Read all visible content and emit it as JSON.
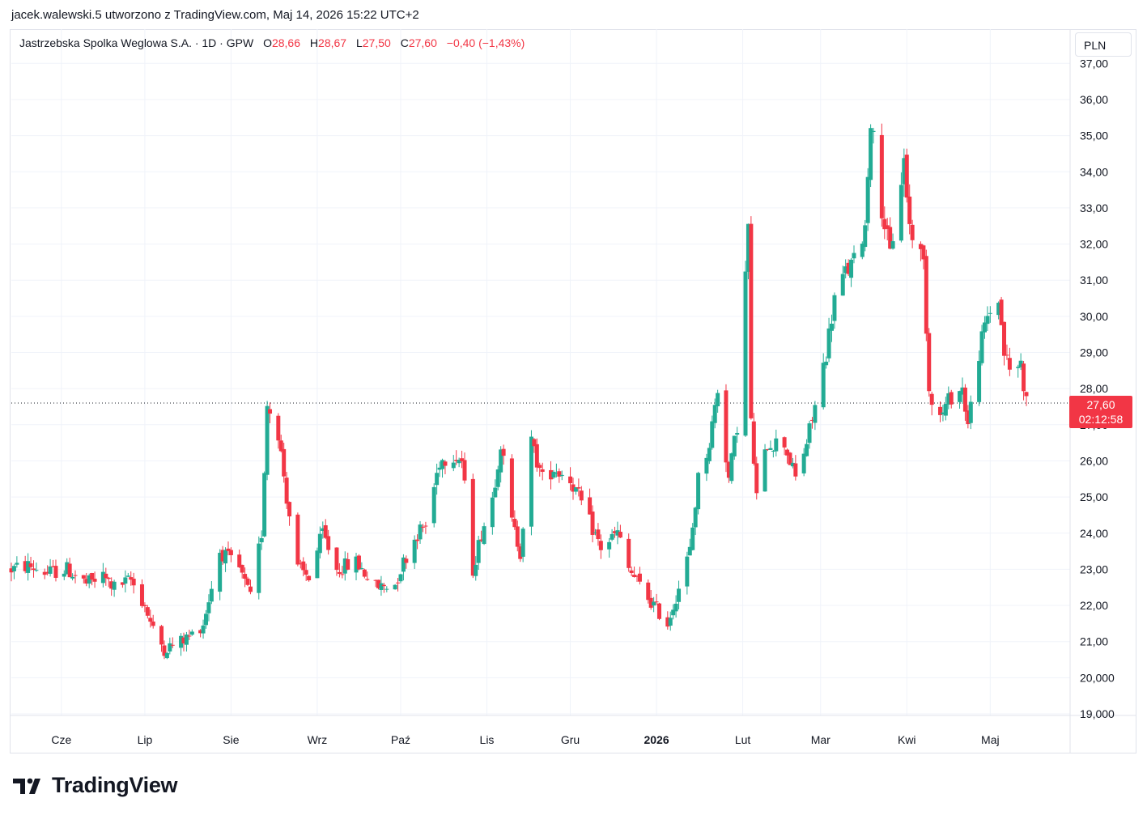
{
  "header": {
    "attribution": "jacek.walewski.5 utworzono z TradingView.com, Maj 14, 2026 15:22 UTC+2"
  },
  "legend": {
    "symbol": "Jastrzebska Spolka Weglowa S.A. · 1D · GPW",
    "open_label": "O",
    "open": "28,66",
    "high_label": "H",
    "high": "28,67",
    "low_label": "L",
    "low": "27,50",
    "close_label": "C",
    "close": "27,60",
    "change": "−0,40 (−1,43%)"
  },
  "currency_button": "PLN",
  "last_price": {
    "price": "27,60",
    "countdown": "02:12:58"
  },
  "brand": {
    "name": "TradingView"
  },
  "colors": {
    "up": "#22ab94",
    "down": "#f23645",
    "grid": "#f0f3fa",
    "text": "#131722"
  },
  "chart_data": {
    "type": "candlestick",
    "title": "Jastrzebska Spolka Weglowa S.A. · 1D · GPW",
    "ylim": [
      19,
      37
    ],
    "y_ticks": [
      "19,000",
      "20,000",
      "21,00",
      "22,00",
      "23,00",
      "24,00",
      "25,00",
      "26,00",
      "27,00",
      "28,00",
      "29,00",
      "30,00",
      "31,00",
      "32,00",
      "33,00",
      "34,00",
      "35,00",
      "36,00",
      "37,00"
    ],
    "x_ticks": [
      {
        "label": "Cze",
        "date": "2025-06-01"
      },
      {
        "label": "Lip",
        "date": "2025-07-01"
      },
      {
        "label": "Sie",
        "date": "2025-08-01"
      },
      {
        "label": "Wrz",
        "date": "2025-09-01"
      },
      {
        "label": "Paź",
        "date": "2025-10-01"
      },
      {
        "label": "Lis",
        "date": "2025-11-01"
      },
      {
        "label": "Gru",
        "date": "2025-12-01"
      },
      {
        "label": "2026",
        "date": "2026-01-01",
        "bold": true
      },
      {
        "label": "Lut",
        "date": "2026-02-01"
      },
      {
        "label": "Mar",
        "date": "2026-03-01"
      },
      {
        "label": "Kwi",
        "date": "2026-04-01"
      },
      {
        "label": "Maj",
        "date": "2026-05-01"
      }
    ],
    "last_close": 27.6,
    "close_path": [
      [
        "2025-05-14",
        23.0
      ],
      [
        "2025-05-20",
        23.1
      ],
      [
        "2025-05-27",
        22.9
      ],
      [
        "2025-06-03",
        23.0
      ],
      [
        "2025-06-10",
        22.6
      ],
      [
        "2025-06-16",
        22.8
      ],
      [
        "2025-06-20",
        22.5
      ],
      [
        "2025-06-26",
        22.7
      ],
      [
        "2025-07-01",
        22.0
      ],
      [
        "2025-07-04",
        21.3
      ],
      [
        "2025-07-08",
        20.8
      ],
      [
        "2025-07-14",
        21.0
      ],
      [
        "2025-07-18",
        21.2
      ],
      [
        "2025-07-22",
        21.5
      ],
      [
        "2025-07-28",
        23.5
      ],
      [
        "2025-08-04",
        23.0
      ],
      [
        "2025-08-08",
        22.2
      ],
      [
        "2025-08-12",
        24.0
      ],
      [
        "2025-08-14",
        27.6
      ],
      [
        "2025-08-18",
        26.8
      ],
      [
        "2025-08-21",
        25.0
      ],
      [
        "2025-08-25",
        23.0
      ],
      [
        "2025-08-29",
        22.8
      ],
      [
        "2025-09-03",
        24.0
      ],
      [
        "2025-09-08",
        23.0
      ],
      [
        "2025-09-15",
        23.2
      ],
      [
        "2025-09-22",
        22.5
      ],
      [
        "2025-09-29",
        22.6
      ],
      [
        "2025-10-02",
        23.2
      ],
      [
        "2025-10-07",
        24.0
      ],
      [
        "2025-10-10",
        24.2
      ],
      [
        "2025-10-15",
        26.0
      ],
      [
        "2025-10-20",
        26.2
      ],
      [
        "2025-10-23",
        26.0
      ],
      [
        "2025-10-27",
        23.0
      ],
      [
        "2025-10-30",
        24.0
      ],
      [
        "2025-11-03",
        25.0
      ],
      [
        "2025-11-06",
        26.5
      ],
      [
        "2025-11-10",
        24.3
      ],
      [
        "2025-11-13",
        23.5
      ],
      [
        "2025-11-17",
        26.5
      ],
      [
        "2025-11-21",
        25.5
      ],
      [
        "2025-11-25",
        25.8
      ],
      [
        "2025-12-01",
        25.5
      ],
      [
        "2025-12-04",
        25.0
      ],
      [
        "2025-12-08",
        24.3
      ],
      [
        "2025-12-12",
        23.6
      ],
      [
        "2025-12-18",
        24.0
      ],
      [
        "2025-12-22",
        23.0
      ],
      [
        "2025-12-29",
        22.2
      ],
      [
        "2026-01-02",
        21.8
      ],
      [
        "2026-01-05",
        21.5
      ],
      [
        "2026-01-09",
        22.5
      ],
      [
        "2026-01-13",
        23.5
      ],
      [
        "2026-01-16",
        25.5
      ],
      [
        "2026-01-20",
        26.5
      ],
      [
        "2026-01-23",
        28.0
      ],
      [
        "2026-01-27",
        25.5
      ],
      [
        "2026-01-30",
        27.0
      ],
      [
        "2026-02-03",
        32.5
      ],
      [
        "2026-02-04",
        27.0
      ],
      [
        "2026-02-06",
        25.0
      ],
      [
        "2026-02-10",
        26.5
      ],
      [
        "2026-02-16",
        26.5
      ],
      [
        "2026-02-20",
        25.5
      ],
      [
        "2026-02-24",
        26.5
      ],
      [
        "2026-02-27",
        27.5
      ],
      [
        "2026-03-03",
        29.0
      ],
      [
        "2026-03-06",
        30.5
      ],
      [
        "2026-03-10",
        31.2
      ],
      [
        "2026-03-13",
        31.5
      ],
      [
        "2026-03-17",
        32.5
      ],
      [
        "2026-03-19",
        35.5
      ],
      [
        "2026-03-23",
        33.0
      ],
      [
        "2026-03-26",
        31.7
      ],
      [
        "2026-03-31",
        34.3
      ],
      [
        "2026-04-02",
        32.5
      ],
      [
        "2026-04-07",
        31.5
      ],
      [
        "2026-04-09",
        28.0
      ],
      [
        "2026-04-13",
        27.2
      ],
      [
        "2026-04-17",
        27.8
      ],
      [
        "2026-04-21",
        28.0
      ],
      [
        "2026-04-23",
        27.0
      ],
      [
        "2026-04-27",
        29.0
      ],
      [
        "2026-04-30",
        30.0
      ],
      [
        "2026-05-04",
        30.5
      ],
      [
        "2026-05-06",
        29.0
      ],
      [
        "2026-05-08",
        28.5
      ],
      [
        "2026-05-12",
        28.7
      ],
      [
        "2026-05-14",
        27.6
      ]
    ]
  }
}
